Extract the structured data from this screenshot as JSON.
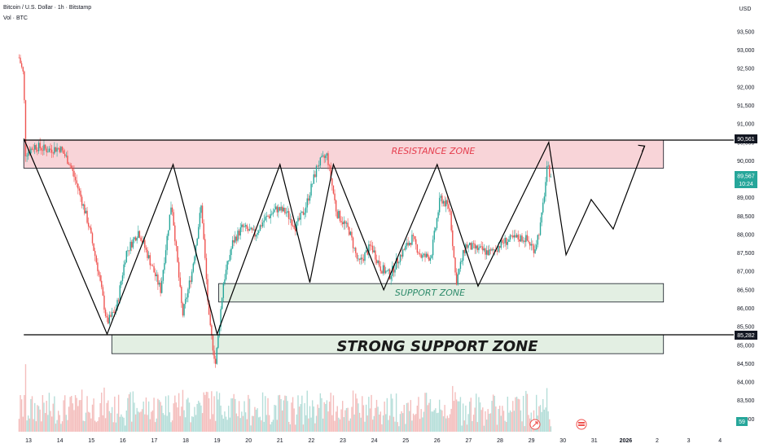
{
  "header": {
    "title": "Bitcoin / U.S. Dollar · 1h · Bitstamp",
    "volume_label": "Vol · BTC"
  },
  "currency": "USD",
  "colors": {
    "up": "#26a69a",
    "down": "#ef5350",
    "resistance_fill": "#f5c6cb",
    "support_fill": "#dcebdc",
    "line": "#000000"
  },
  "price_axis": {
    "ticks": [
      "93,500",
      "93,000",
      "92,500",
      "92,000",
      "91,500",
      "91,000",
      "90,500",
      "90,000",
      "89,500",
      "89,000",
      "88,500",
      "88,000",
      "87,500",
      "87,000",
      "86,500",
      "86,000",
      "85,500",
      "85,000",
      "84,500",
      "84,000",
      "83,500",
      "83,000"
    ],
    "current_price": "89,567",
    "countdown": "10:24",
    "level_upper": "90,561",
    "level_lower": "85,282",
    "volume_badge": "59"
  },
  "time_axis": {
    "ticks": [
      "13",
      "14",
      "15",
      "16",
      "17",
      "18",
      "19",
      "20",
      "21",
      "22",
      "23",
      "24",
      "25",
      "26",
      "27",
      "28",
      "29",
      "30",
      "31",
      "2026",
      "2",
      "3",
      "4"
    ]
  },
  "annotations": {
    "resistance": "RESISTANCE ZONE",
    "support": "SUPPORT ZONE",
    "strong_support": "STRONG SUPPORT ZONE"
  },
  "chart_data": {
    "type": "candlestick",
    "title": "Bitcoin / U.S. Dollar · 1h · Bitstamp",
    "ylabel": "USD",
    "ylim": [
      82800,
      93900
    ],
    "x_unit": "day",
    "zones": [
      {
        "name": "RESISTANCE ZONE",
        "x_start": 12.85,
        "x_end": 33.2,
        "y_low": 89.8,
        "y_high": 90.56
      },
      {
        "name": "SUPPORT ZONE",
        "x_start": 19.05,
        "x_end": 33.2,
        "y_low": 86.17,
        "y_high": 86.67
      },
      {
        "name": "STRONG SUPPORT ZONE",
        "x_start": 15.65,
        "x_end": 33.2,
        "y_low": 84.77,
        "y_high": 85.28
      }
    ],
    "horizontal_levels": [
      90561,
      85282
    ],
    "pattern_path": [
      [
        12.85,
        90600
      ],
      [
        15.5,
        85300
      ],
      [
        17.6,
        89900
      ],
      [
        19.0,
        85300
      ],
      [
        21.0,
        89900
      ],
      [
        21.95,
        86700
      ],
      [
        22.7,
        89900
      ],
      [
        24.3,
        86500
      ],
      [
        26.0,
        89900
      ],
      [
        27.3,
        86600
      ],
      [
        29.55,
        90500
      ],
      [
        30.1,
        87450
      ],
      [
        30.9,
        88950
      ],
      [
        31.6,
        88150
      ],
      [
        32.6,
        90400
      ]
    ],
    "price_anchors": [
      [
        12.7,
        92800
      ],
      [
        12.85,
        92300
      ],
      [
        12.9,
        90200
      ],
      [
        13.2,
        90400
      ],
      [
        13.6,
        90300
      ],
      [
        14.0,
        90350
      ],
      [
        14.3,
        89950
      ],
      [
        14.6,
        89200
      ],
      [
        14.9,
        88300
      ],
      [
        15.2,
        87100
      ],
      [
        15.5,
        85600
      ],
      [
        15.8,
        86000
      ],
      [
        16.1,
        87500
      ],
      [
        16.5,
        88100
      ],
      [
        16.9,
        87200
      ],
      [
        17.2,
        86500
      ],
      [
        17.55,
        88900
      ],
      [
        17.9,
        85800
      ],
      [
        18.2,
        87000
      ],
      [
        18.5,
        88800
      ],
      [
        18.75,
        85600
      ],
      [
        18.95,
        84500
      ],
      [
        19.2,
        86700
      ],
      [
        19.5,
        87800
      ],
      [
        19.8,
        88200
      ],
      [
        20.2,
        88000
      ],
      [
        20.5,
        88400
      ],
      [
        20.9,
        88700
      ],
      [
        21.2,
        88600
      ],
      [
        21.5,
        88200
      ],
      [
        21.8,
        88700
      ],
      [
        22.2,
        89900
      ],
      [
        22.5,
        90150
      ],
      [
        22.8,
        88600
      ],
      [
        23.2,
        88100
      ],
      [
        23.5,
        87200
      ],
      [
        23.9,
        87700
      ],
      [
        24.2,
        87100
      ],
      [
        24.5,
        86900
      ],
      [
        24.8,
        87400
      ],
      [
        25.2,
        87900
      ],
      [
        25.5,
        87400
      ],
      [
        25.8,
        87400
      ],
      [
        26.1,
        89000
      ],
      [
        26.4,
        88700
      ],
      [
        26.6,
        86700
      ],
      [
        26.9,
        87700
      ],
      [
        27.3,
        87600
      ],
      [
        27.7,
        87500
      ],
      [
        28.1,
        87800
      ],
      [
        28.5,
        87900
      ],
      [
        28.8,
        87900
      ],
      [
        29.1,
        87600
      ],
      [
        29.3,
        88300
      ],
      [
        29.5,
        89800
      ],
      [
        29.65,
        89567
      ]
    ]
  }
}
